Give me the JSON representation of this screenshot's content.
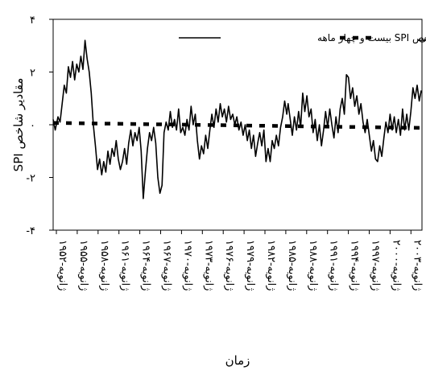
{
  "chart_data": {
    "type": "line",
    "title": "",
    "xlabel": "زمان",
    "ylabel": "مقادیر شاخص SPI",
    "ylim": [
      -4,
      4
    ],
    "y_ticks": [
      {
        "value": 4,
        "label": "۴"
      },
      {
        "value": 2,
        "label": "۲"
      },
      {
        "value": 0,
        "label": "۰"
      },
      {
        "value": -2,
        "label": "-۲"
      },
      {
        "value": -4,
        "label": "-۴"
      }
    ],
    "x_tick_labels": [
      "ژانویه-۱۹۵۲",
      "ژانویه-۱۹۵۵",
      "ژانویه-۱۹۵۸",
      "ژانویه-۱۹۶۱",
      "ژانویه-۱۹۶۴",
      "ژانویه-۱۹۶۷",
      "ژانویه-۱۹۷۰",
      "ژانویه-۱۹۷۳",
      "ژانویه-۱۹۷۶",
      "ژانویه-۱۹۷۹",
      "ژانویه-۱۹۸۲",
      "ژانویه-۱۹۸۵",
      "ژانویه-۱۹۸۸",
      "ژانویه-۱۹۹۱",
      "ژانویه-۱۹۹۴",
      "ژانویه-۱۹۹۷",
      "ژانویه-۲۰۰۰",
      "ژانویه-۲۰۰۳"
    ],
    "grid": false,
    "legend_position": "top-right",
    "series": [
      {
        "name": "شاخص SPI بیست و چهار ماهه",
        "style": "solid",
        "color": "#000000",
        "points": [
          [
            1951.0,
            0.2
          ],
          [
            1951.3,
            -0.2
          ],
          [
            1951.7,
            0.3
          ],
          [
            1952.0,
            0.1
          ],
          [
            1952.3,
            0.8
          ],
          [
            1952.6,
            1.5
          ],
          [
            1952.9,
            1.2
          ],
          [
            1953.2,
            2.2
          ],
          [
            1953.5,
            1.8
          ],
          [
            1953.8,
            2.4
          ],
          [
            1954.1,
            1.7
          ],
          [
            1954.4,
            2.3
          ],
          [
            1954.7,
            2.0
          ],
          [
            1955.0,
            2.6
          ],
          [
            1955.3,
            2.1
          ],
          [
            1955.6,
            3.2
          ],
          [
            1955.9,
            2.5
          ],
          [
            1956.2,
            2.0
          ],
          [
            1956.5,
            1.2
          ],
          [
            1956.8,
            0.0
          ],
          [
            1957.1,
            -0.8
          ],
          [
            1957.4,
            -1.7
          ],
          [
            1957.7,
            -1.3
          ],
          [
            1958.0,
            -1.9
          ],
          [
            1958.3,
            -1.4
          ],
          [
            1958.6,
            -1.8
          ],
          [
            1958.9,
            -1.0
          ],
          [
            1959.2,
            -1.5
          ],
          [
            1959.5,
            -0.9
          ],
          [
            1959.8,
            -1.2
          ],
          [
            1960.1,
            -0.6
          ],
          [
            1960.4,
            -1.3
          ],
          [
            1960.7,
            -1.7
          ],
          [
            1961.0,
            -1.4
          ],
          [
            1961.3,
            -0.9
          ],
          [
            1961.6,
            -1.5
          ],
          [
            1961.9,
            -0.7
          ],
          [
            1962.2,
            -0.2
          ],
          [
            1962.5,
            -0.8
          ],
          [
            1962.8,
            -0.3
          ],
          [
            1963.1,
            -0.6
          ],
          [
            1963.4,
            -0.1
          ],
          [
            1963.7,
            -1.0
          ],
          [
            1964.0,
            -2.8
          ],
          [
            1964.3,
            -1.8
          ],
          [
            1964.6,
            -0.9
          ],
          [
            1964.9,
            -0.3
          ],
          [
            1965.2,
            -0.6
          ],
          [
            1965.5,
            -0.1
          ],
          [
            1965.8,
            -0.7
          ],
          [
            1966.1,
            -2.0
          ],
          [
            1966.4,
            -2.6
          ],
          [
            1966.7,
            -2.3
          ],
          [
            1967.0,
            -0.3
          ],
          [
            1967.3,
            0.1
          ],
          [
            1967.6,
            -0.2
          ],
          [
            1967.9,
            0.5
          ],
          [
            1968.2,
            -0.1
          ],
          [
            1968.5,
            0.2
          ],
          [
            1968.8,
            -0.2
          ],
          [
            1969.1,
            0.6
          ],
          [
            1969.4,
            -0.3
          ],
          [
            1969.7,
            -0.1
          ],
          [
            1970.0,
            -0.4
          ],
          [
            1970.3,
            0.2
          ],
          [
            1970.6,
            -0.2
          ],
          [
            1970.9,
            0.7
          ],
          [
            1971.2,
            0.0
          ],
          [
            1971.5,
            0.4
          ],
          [
            1971.8,
            -0.6
          ],
          [
            1972.1,
            -1.3
          ],
          [
            1972.4,
            -0.8
          ],
          [
            1972.7,
            -1.1
          ],
          [
            1973.0,
            -0.4
          ],
          [
            1973.3,
            -0.9
          ],
          [
            1973.6,
            -0.2
          ],
          [
            1973.9,
            0.4
          ],
          [
            1974.2,
            -0.1
          ],
          [
            1974.5,
            0.6
          ],
          [
            1974.8,
            0.1
          ],
          [
            1975.1,
            0.8
          ],
          [
            1975.4,
            0.3
          ],
          [
            1975.7,
            0.6
          ],
          [
            1976.0,
            0.1
          ],
          [
            1976.3,
            0.7
          ],
          [
            1976.6,
            0.2
          ],
          [
            1976.9,
            0.4
          ],
          [
            1977.2,
            0.0
          ],
          [
            1977.5,
            0.3
          ],
          [
            1977.8,
            -0.2
          ],
          [
            1978.1,
            0.1
          ],
          [
            1978.4,
            -0.4
          ],
          [
            1978.7,
            0.0
          ],
          [
            1979.0,
            -0.6
          ],
          [
            1979.3,
            -0.2
          ],
          [
            1979.6,
            -0.9
          ],
          [
            1979.9,
            -0.4
          ],
          [
            1980.2,
            -1.2
          ],
          [
            1980.5,
            -0.7
          ],
          [
            1980.8,
            -0.3
          ],
          [
            1981.1,
            -0.8
          ],
          [
            1981.4,
            -0.2
          ],
          [
            1981.7,
            -1.4
          ],
          [
            1982.0,
            -0.9
          ],
          [
            1982.3,
            -1.4
          ],
          [
            1982.6,
            -0.6
          ],
          [
            1982.9,
            -0.9
          ],
          [
            1983.2,
            -0.4
          ],
          [
            1983.5,
            -0.8
          ],
          [
            1983.8,
            -0.1
          ],
          [
            1984.1,
            0.3
          ],
          [
            1984.4,
            0.9
          ],
          [
            1984.7,
            0.4
          ],
          [
            1984.9,
            0.8
          ],
          [
            1985.2,
            0.2
          ],
          [
            1985.5,
            -0.4
          ],
          [
            1985.8,
            0.3
          ],
          [
            1986.1,
            -0.2
          ],
          [
            1986.4,
            0.5
          ],
          [
            1986.7,
            -0.1
          ],
          [
            1987.0,
            1.2
          ],
          [
            1987.3,
            0.5
          ],
          [
            1987.6,
            1.1
          ],
          [
            1987.9,
            0.3
          ],
          [
            1988.2,
            0.6
          ],
          [
            1988.5,
            -0.3
          ],
          [
            1988.8,
            0.2
          ],
          [
            1989.1,
            -0.6
          ],
          [
            1989.4,
            0.0
          ],
          [
            1989.7,
            -0.8
          ],
          [
            1990.0,
            -0.2
          ],
          [
            1990.3,
            0.5
          ],
          [
            1990.6,
            -0.1
          ],
          [
            1990.9,
            0.6
          ],
          [
            1991.2,
            0.0
          ],
          [
            1991.5,
            -0.5
          ],
          [
            1991.8,
            0.3
          ],
          [
            1992.1,
            -0.3
          ],
          [
            1992.4,
            0.6
          ],
          [
            1992.7,
            1.0
          ],
          [
            1993.0,
            0.4
          ],
          [
            1993.3,
            1.9
          ],
          [
            1993.6,
            1.8
          ],
          [
            1993.9,
            1.0
          ],
          [
            1994.2,
            1.4
          ],
          [
            1994.5,
            0.7
          ],
          [
            1994.8,
            1.1
          ],
          [
            1995.1,
            0.4
          ],
          [
            1995.4,
            0.8
          ],
          [
            1995.7,
            0.1
          ],
          [
            1996.0,
            -0.3
          ],
          [
            1996.3,
            0.2
          ],
          [
            1996.6,
            -0.4
          ],
          [
            1996.9,
            -1.0
          ],
          [
            1997.2,
            -0.6
          ],
          [
            1997.5,
            -1.3
          ],
          [
            1997.8,
            -1.4
          ],
          [
            1998.1,
            -0.8
          ],
          [
            1998.4,
            -1.2
          ],
          [
            1998.7,
            -0.5
          ],
          [
            1999.0,
            0.1
          ],
          [
            1999.3,
            -0.3
          ],
          [
            1999.6,
            0.4
          ],
          [
            1999.9,
            -0.2
          ],
          [
            2000.2,
            0.3
          ],
          [
            2000.5,
            -0.3
          ],
          [
            2000.8,
            0.2
          ],
          [
            2001.1,
            -0.4
          ],
          [
            2001.4,
            0.6
          ],
          [
            2001.7,
            -0.2
          ],
          [
            2002.0,
            0.4
          ],
          [
            2002.3,
            -0.2
          ],
          [
            2002.6,
            0.5
          ],
          [
            2002.9,
            1.4
          ],
          [
            2003.2,
            1.0
          ],
          [
            2003.5,
            1.5
          ],
          [
            2003.8,
            0.9
          ],
          [
            2004.1,
            1.3
          ]
        ]
      },
      {
        "name": "روند خطی",
        "style": "dashed",
        "color": "#000000",
        "points": [
          [
            1951.0,
            0.07
          ],
          [
            2004.1,
            -0.12
          ]
        ]
      }
    ]
  }
}
